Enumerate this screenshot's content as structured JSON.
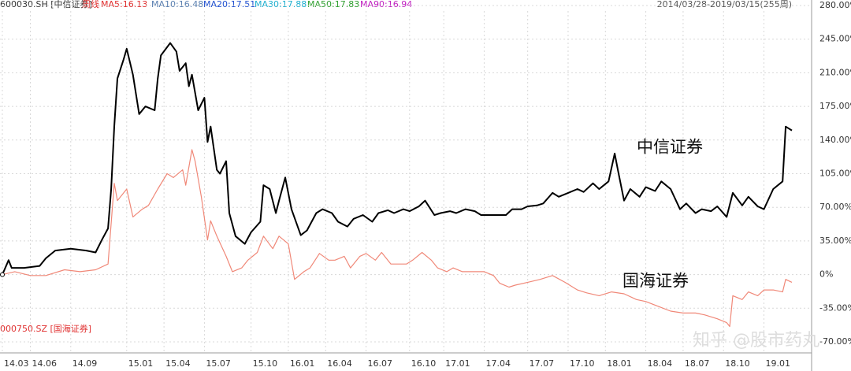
{
  "chart_data": {
    "type": "line",
    "header": {
      "symbol": "600030.SH [中信证券]",
      "period": "周线",
      "range": "2014/03/28-2019/03/15(255周)",
      "indicators": [
        {
          "label": "MA5:16.13",
          "color": "#e03030"
        },
        {
          "label": "MA10:16.48",
          "color": "#5a7fb0"
        },
        {
          "label": "MA20:17.51",
          "color": "#2050d0"
        },
        {
          "label": "MA30:17.88",
          "color": "#20b0d0"
        },
        {
          "label": "MA50:17.83",
          "color": "#30a030"
        },
        {
          "label": "MA90:16.94",
          "color": "#c020c0"
        }
      ]
    },
    "secondary_symbol": "000750.SZ [国海证券]",
    "watermark": "知乎 @股市药丸",
    "xlim": [
      0,
      254
    ],
    "xticks": [
      {
        "value": 0,
        "label": "14.03"
      },
      {
        "value": 9,
        "label": "14.06"
      },
      {
        "value": 22,
        "label": "14.09"
      },
      {
        "value": 40,
        "label": "15.01"
      },
      {
        "value": 52,
        "label": "15.04"
      },
      {
        "value": 65,
        "label": "15.07"
      },
      {
        "value": 80,
        "label": "15.10"
      },
      {
        "value": 92,
        "label": "16.01"
      },
      {
        "value": 104,
        "label": "16.04"
      },
      {
        "value": 117,
        "label": "16.07"
      },
      {
        "value": 131,
        "label": "16.10"
      },
      {
        "value": 142,
        "label": "17.01"
      },
      {
        "value": 155,
        "label": "17.04"
      },
      {
        "value": 169,
        "label": "17.07"
      },
      {
        "value": 182,
        "label": "17.10"
      },
      {
        "value": 194,
        "label": "18.01"
      },
      {
        "value": 207,
        "label": "18.04"
      },
      {
        "value": 219,
        "label": "18.07"
      },
      {
        "value": 232,
        "label": "18.10"
      },
      {
        "value": 245,
        "label": "19.01"
      }
    ],
    "ylim": [
      -70,
      280
    ],
    "yticks": [
      {
        "value": 280,
        "label": "280.00%"
      },
      {
        "value": 245,
        "label": "245.00%"
      },
      {
        "value": 210,
        "label": "210.00%"
      },
      {
        "value": 175,
        "label": "175.00%"
      },
      {
        "value": 140,
        "label": "140.00%"
      },
      {
        "value": 105,
        "label": "105.00%"
      },
      {
        "value": 70,
        "label": "70.00%"
      },
      {
        "value": 35,
        "label": "35.00%"
      },
      {
        "value": 0,
        "label": "0%"
      },
      {
        "value": -35,
        "label": "-35.00%"
      },
      {
        "value": -70,
        "label": "-70.00%"
      }
    ],
    "grid": true,
    "series": [
      {
        "name": "中信证券",
        "color": "#000000",
        "x": [
          0,
          2,
          3,
          7,
          12,
          14,
          17,
          22,
          27,
          30,
          32,
          34,
          35,
          36,
          37,
          39,
          40,
          42,
          44,
          46,
          49,
          50,
          51,
          54,
          56,
          57,
          59,
          60,
          61,
          63,
          65,
          66,
          67,
          69,
          70,
          72,
          73,
          75,
          78,
          80,
          83,
          84,
          86,
          88,
          89,
          91,
          93,
          96,
          98,
          101,
          103,
          106,
          108,
          111,
          113,
          116,
          119,
          121,
          124,
          126,
          129,
          131,
          134,
          136,
          139,
          141,
          144,
          146,
          149,
          152,
          154,
          157,
          159,
          162,
          164,
          167,
          169,
          172,
          174,
          177,
          179,
          182,
          185,
          187,
          190,
          192,
          195,
          197,
          198,
          200,
          202,
          205,
          207,
          210,
          212,
          215,
          218,
          220,
          223,
          225,
          228,
          230,
          233,
          235,
          238,
          240,
          243,
          245,
          248,
          251,
          252,
          254
        ],
        "values": [
          0,
          15,
          7,
          7,
          9,
          17,
          25,
          27,
          25,
          23,
          36,
          48,
          89,
          154,
          204,
          224,
          235,
          208,
          167,
          175,
          171,
          204,
          228,
          241,
          232,
          212,
          220,
          196,
          208,
          171,
          184,
          138,
          154,
          109,
          105,
          118,
          64,
          40,
          32,
          44,
          55,
          93,
          89,
          64,
          77,
          101,
          68,
          41,
          46,
          64,
          68,
          64,
          55,
          50,
          58,
          62,
          55,
          64,
          67,
          64,
          68,
          66,
          71,
          77,
          62,
          64,
          66,
          64,
          68,
          66,
          62,
          62,
          62,
          62,
          68,
          68,
          71,
          72,
          74,
          85,
          81,
          85,
          89,
          86,
          95,
          89,
          97,
          126,
          109,
          77,
          89,
          81,
          91,
          87,
          97,
          89,
          68,
          74,
          64,
          68,
          66,
          71,
          60,
          85,
          72,
          81,
          71,
          68,
          89,
          97,
          154,
          150
        ]
      },
      {
        "name": "国海证券",
        "color": "#f08878",
        "x": [
          0,
          4,
          9,
          14,
          20,
          25,
          30,
          34,
          36,
          37,
          40,
          42,
          45,
          47,
          50,
          53,
          55,
          58,
          59,
          61,
          62,
          64,
          66,
          67,
          69,
          72,
          74,
          77,
          79,
          82,
          84,
          87,
          89,
          92,
          94,
          97,
          99,
          102,
          105,
          107,
          110,
          112,
          115,
          117,
          120,
          122,
          125,
          127,
          130,
          132,
          135,
          138,
          140,
          143,
          145,
          148,
          150,
          153,
          155,
          158,
          160,
          163,
          165,
          169,
          173,
          177,
          181,
          185,
          188,
          192,
          196,
          200,
          204,
          207,
          211,
          215,
          219,
          223,
          226,
          230,
          233,
          234,
          235,
          238,
          240,
          243,
          245,
          248,
          251,
          252,
          254
        ],
        "values": [
          0,
          3,
          -1,
          -1,
          5,
          3,
          5,
          11,
          95,
          77,
          89,
          60,
          68,
          72,
          89,
          105,
          101,
          109,
          93,
          130,
          118,
          81,
          36,
          56,
          40,
          19,
          3,
          7,
          15,
          23,
          40,
          27,
          40,
          32,
          -5,
          3,
          7,
          22,
          15,
          15,
          19,
          7,
          19,
          22,
          15,
          23,
          11,
          11,
          11,
          15,
          23,
          15,
          7,
          3,
          7,
          3,
          3,
          3,
          3,
          -1,
          -9,
          -13,
          -11,
          -8,
          -5,
          -1,
          -8,
          -16,
          -19,
          -22,
          -18,
          -20,
          -26,
          -28,
          -33,
          -38,
          -40,
          -40,
          -42,
          -46,
          -50,
          -54,
          -22,
          -26,
          -18,
          -22,
          -16,
          -16,
          -18,
          -5,
          -8
        ]
      }
    ]
  }
}
